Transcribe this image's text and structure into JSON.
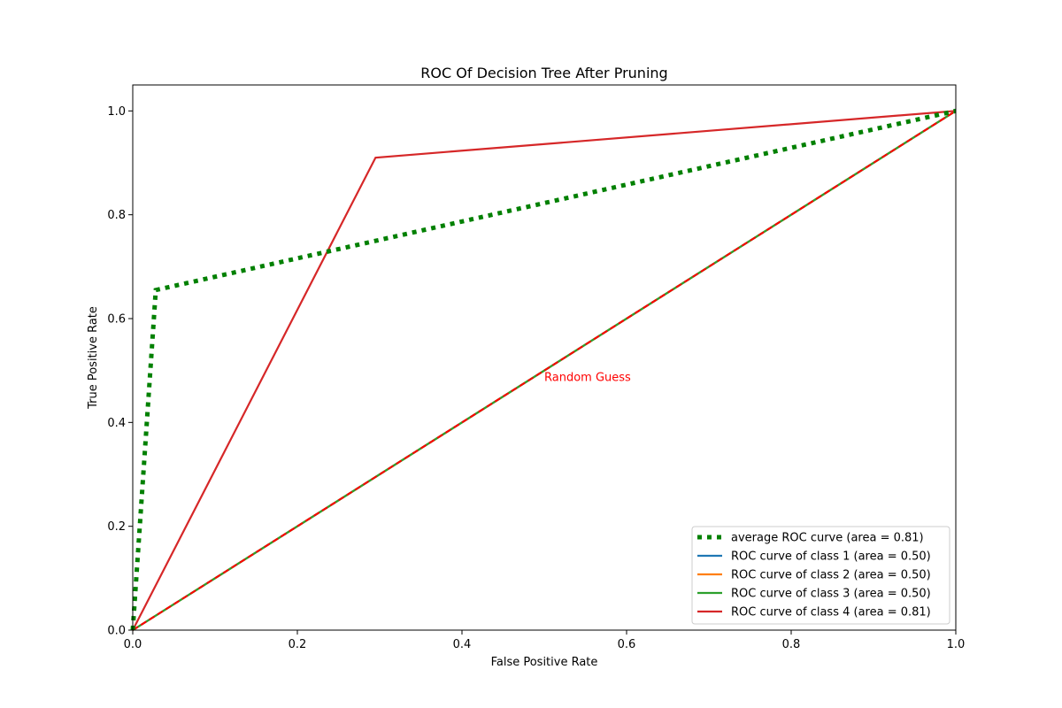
{
  "chart_data": {
    "type": "line",
    "title": "ROC Of Decision Tree After Pruning",
    "xlabel": "False Positive Rate",
    "ylabel": "True Positive Rate",
    "xlim": [
      0.0,
      1.0
    ],
    "ylim": [
      0.0,
      1.05
    ],
    "xticks": [
      0.0,
      0.2,
      0.4,
      0.6,
      0.8,
      1.0
    ],
    "yticks": [
      0.0,
      0.2,
      0.4,
      0.6,
      0.8,
      1.0
    ],
    "xtick_labels": [
      "0.0",
      "0.2",
      "0.4",
      "0.6",
      "0.8",
      "1.0"
    ],
    "ytick_labels": [
      "0.0",
      "0.2",
      "0.4",
      "0.6",
      "0.8",
      "1.0"
    ],
    "grid": false,
    "legend_position": "lower-right",
    "annotations": [
      {
        "text": "Random Guess",
        "x": 0.5,
        "y": 0.48,
        "color": "#ff0000"
      }
    ],
    "series": [
      {
        "name": "average ROC curve (area = 0.81)",
        "color": "#008000",
        "style": "dotted",
        "x": [
          0.0,
          0.028,
          1.0
        ],
        "y": [
          0.0,
          0.655,
          1.0
        ]
      },
      {
        "name": "ROC curve of class 1 (area = 0.50)",
        "color": "#1f77b4",
        "style": "solid",
        "x": [
          0.0,
          1.0
        ],
        "y": [
          0.0,
          1.0
        ]
      },
      {
        "name": "ROC curve of class 2 (area = 0.50)",
        "color": "#ff7f0e",
        "style": "solid",
        "x": [
          0.0,
          1.0
        ],
        "y": [
          0.0,
          1.0
        ]
      },
      {
        "name": "ROC curve of class 3 (area = 0.50)",
        "color": "#2ca02c",
        "style": "solid",
        "x": [
          0.0,
          1.0
        ],
        "y": [
          0.0,
          1.0
        ]
      },
      {
        "name": "ROC curve of class 4 (area = 0.81)",
        "color": "#d62728",
        "style": "solid",
        "x": [
          0.0,
          0.295,
          1.0
        ],
        "y": [
          0.0,
          0.91,
          1.0
        ]
      }
    ],
    "reference_line": {
      "label": "Random Guess",
      "color": "#ff0000",
      "style": "dashed",
      "x": [
        0.0,
        1.0
      ],
      "y": [
        0.0,
        1.0
      ]
    }
  }
}
